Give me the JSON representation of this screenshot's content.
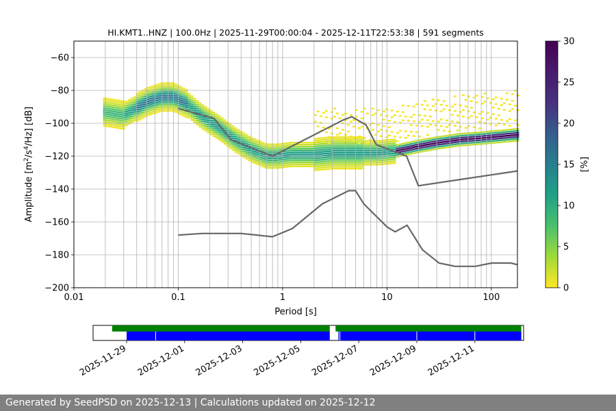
{
  "chart_data": {
    "type": "heatmap",
    "title": "HI.KMT1..HNZ | 100.0Hz | 2025-11-29T00:00:04 - 2025-12-11T22:53:38 | 591 segments",
    "xlabel": "Period [s]",
    "ylabel_parts": [
      "Amplitude [m",
      "2",
      "/s",
      "4",
      "/Hz] [dB]"
    ],
    "xscale": "log",
    "xlim": [
      0.01,
      178
    ],
    "ylim": [
      -200,
      -50
    ],
    "xticks": [
      {
        "value": 0.01,
        "label": "0.01"
      },
      {
        "value": 0.1,
        "label": "0.1"
      },
      {
        "value": 1,
        "label": "1"
      },
      {
        "value": 10,
        "label": "10"
      },
      {
        "value": 100,
        "label": "100"
      }
    ],
    "yticks": [
      {
        "value": -60,
        "label": "−60"
      },
      {
        "value": -80,
        "label": "−80"
      },
      {
        "value": -100,
        "label": "−100"
      },
      {
        "value": -120,
        "label": "−120"
      },
      {
        "value": -140,
        "label": "−140"
      },
      {
        "value": -160,
        "label": "−160"
      },
      {
        "value": -180,
        "label": "−180"
      },
      {
        "value": -200,
        "label": "−200"
      }
    ],
    "colorbar": {
      "label": "[%]",
      "range": [
        0,
        30
      ],
      "cmap": "viridis_r",
      "ticks": [
        {
          "value": 0,
          "label": "0"
        },
        {
          "value": 5,
          "label": "5"
        },
        {
          "value": 10,
          "label": "10"
        },
        {
          "value": 15,
          "label": "15"
        },
        {
          "value": 20,
          "label": "20"
        },
        {
          "value": 25,
          "label": "25"
        },
        {
          "value": 30,
          "label": "30"
        }
      ]
    },
    "mode_curve": {
      "period": [
        0.019,
        0.03,
        0.05,
        0.07,
        0.09,
        0.12,
        0.17,
        0.25,
        0.35,
        0.5,
        0.7,
        0.9,
        1.2,
        2,
        3,
        5,
        8,
        12,
        20,
        30,
        50,
        80,
        120,
        178
      ],
      "amplitude": [
        -93,
        -95,
        -87,
        -84,
        -84,
        -88,
        -96,
        -103,
        -110,
        -116,
        -120,
        -120,
        -119,
        -119,
        -118,
        -118,
        -118,
        -117,
        -114,
        -112,
        -110,
        -109,
        -108,
        -107
      ]
    },
    "nhnm": {
      "period": [
        0.1,
        0.22,
        0.32,
        0.8,
        3.8,
        4.6,
        6.3,
        7.9,
        15.4,
        20,
        178
      ],
      "amplitude": [
        -91,
        -97,
        -110,
        -120,
        -98,
        -96,
        -101,
        -113,
        -120,
        -138,
        -129
      ]
    },
    "nlnm": {
      "period": [
        0.1,
        0.17,
        0.4,
        0.8,
        1.24,
        2.4,
        4.3,
        5,
        6,
        10,
        12,
        15.6,
        21.9,
        31.6,
        45,
        70,
        101,
        154,
        178
      ],
      "amplitude": [
        -168,
        -167,
        -167,
        -169,
        -164,
        -149,
        -141,
        -141,
        -149,
        -163,
        -166,
        -162,
        -177,
        -185,
        -187,
        -187,
        -185,
        -185,
        -186
      ]
    },
    "availability": {
      "dates": [
        "2025-11-29",
        "2025-12-01",
        "2025-12-03",
        "2025-12-05",
        "2025-12-07",
        "2025-12-09",
        "2025-12-11"
      ],
      "green_segments": [
        [
          -0.5,
          7.0
        ],
        [
          7.2,
          13.6
        ]
      ],
      "blue_segments": [
        [
          0.0,
          7.0
        ],
        [
          7.3,
          13.6
        ]
      ],
      "gap_ticks": [
        1.0,
        7.35,
        10.0,
        12.0
      ]
    }
  },
  "footer": {
    "text": "Generated by SeedPSD on 2025-12-13 | Calculations updated on 2025-12-12"
  }
}
